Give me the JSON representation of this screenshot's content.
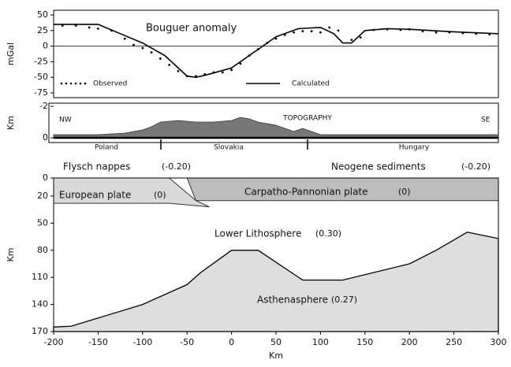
{
  "chart_data": [
    {
      "type": "line",
      "title": "Bouguer anomaly",
      "ylabel": "mGal",
      "xlim": [
        -200,
        300
      ],
      "ylim": [
        -75,
        50
      ],
      "yticks": [
        50,
        25,
        0,
        -25,
        -50,
        -75
      ],
      "zero_line": true,
      "series": [
        {
          "name": "Observed",
          "color": "#000000",
          "style": "dots",
          "x": [
            -190,
            -175,
            -160,
            -150,
            -135,
            -120,
            -110,
            -100,
            -90,
            -80,
            -70,
            -60,
            -50,
            -40,
            -30,
            -20,
            -10,
            0,
            10,
            20,
            30,
            40,
            50,
            60,
            70,
            80,
            90,
            100,
            110,
            120,
            135,
            145,
            160,
            175,
            190,
            200,
            215,
            230,
            245,
            260,
            275,
            290
          ],
          "values": [
            33,
            33,
            30,
            28,
            25,
            12,
            2,
            -3,
            -10,
            -20,
            -30,
            -40,
            -48,
            -48,
            -45,
            -42,
            -42,
            -38,
            -28,
            -15,
            -5,
            5,
            12,
            18,
            22,
            24,
            24,
            22,
            30,
            25,
            10,
            14,
            26,
            27,
            26,
            27,
            24,
            22,
            22,
            21,
            20,
            19
          ]
        },
        {
          "name": "Calculated",
          "color": "#000000",
          "style": "line",
          "x": [
            -200,
            -150,
            -125,
            -100,
            -75,
            -50,
            -40,
            -25,
            0,
            25,
            50,
            75,
            100,
            115,
            125,
            135,
            150,
            175,
            200,
            250,
            300
          ],
          "values": [
            35,
            35,
            20,
            5,
            -15,
            -48,
            -50,
            -45,
            -35,
            -10,
            15,
            28,
            30,
            20,
            5,
            5,
            25,
            28,
            27,
            23,
            20
          ]
        }
      ]
    },
    {
      "type": "area",
      "title": "TOPOGRAPHY",
      "ylabel": "Km",
      "left_label": "NW",
      "right_label": "SE",
      "xlim": [
        -200,
        300
      ],
      "ylim": [
        -2.2,
        0.3
      ],
      "y_inverted": true,
      "yticks": [
        -2,
        0
      ],
      "categories": [
        "Poland",
        "Slovakia",
        "Hungary"
      ],
      "series": [
        {
          "color": "#777777",
          "x": [
            -200,
            -150,
            -120,
            -100,
            -90,
            -80,
            -60,
            -40,
            -30,
            -20,
            0,
            10,
            20,
            30,
            50,
            70,
            80,
            100,
            150,
            200,
            300
          ],
          "values": [
            -0.2,
            -0.2,
            -0.3,
            -0.5,
            -0.7,
            -1.0,
            -1.1,
            -1.0,
            -1.0,
            -1.0,
            -1.1,
            -1.3,
            -1.2,
            -1.0,
            -0.8,
            -0.4,
            -0.6,
            -0.2,
            -0.2,
            -0.2,
            -0.2
          ]
        }
      ]
    },
    {
      "type": "section",
      "xlabel": "Km",
      "ylabel": "Km",
      "xlim": [
        -200,
        300
      ],
      "ylim": [
        0,
        170
      ],
      "y_inverted": true,
      "xticks": [
        -200,
        -150,
        -100,
        -50,
        0,
        50,
        100,
        150,
        200,
        250,
        300
      ],
      "yticks": [
        0,
        20,
        50,
        80,
        110,
        140,
        170
      ],
      "layers": [
        {
          "name": "Flysch nappes",
          "label": "(-0.20)"
        },
        {
          "name": "Neogene sediments",
          "label": "(-0.20)"
        },
        {
          "name": "European plate",
          "label": "(0)",
          "color": "#d9d9d9",
          "x": [
            -200,
            -70,
            -40,
            -25,
            -70,
            -200
          ],
          "values": [
            0,
            0,
            25,
            32,
            28,
            28
          ]
        },
        {
          "name": "Carpatho-Pannonian plate",
          "label": "(0)",
          "color": "#bdbdbd",
          "x": [
            -50,
            300,
            300,
            -40
          ],
          "values": [
            0,
            0,
            25,
            25
          ]
        },
        {
          "name": "Lower Lithosphere",
          "label": "(0.30)"
        },
        {
          "name": "Asthenasphere",
          "label": "(0.27)",
          "color": "#dedede",
          "x": [
            -200,
            -180,
            -100,
            -50,
            -35,
            0,
            30,
            80,
            125,
            200,
            230,
            265,
            300
          ],
          "values": [
            165,
            164,
            140,
            118,
            105,
            80,
            80,
            113,
            113,
            95,
            80,
            60,
            67
          ]
        }
      ]
    }
  ]
}
